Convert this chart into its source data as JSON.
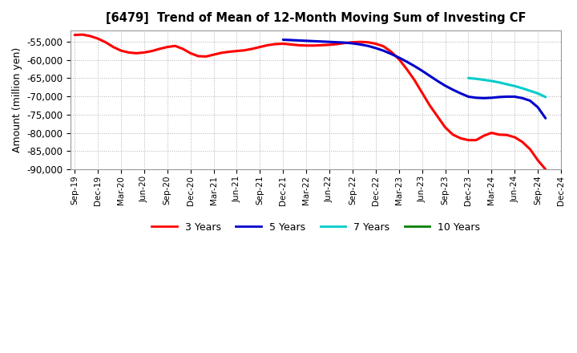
{
  "title": "[6479]  Trend of Mean of 12-Month Moving Sum of Investing CF",
  "ylabel": "Amount (million yen)",
  "ylim": [
    -90000,
    -52000
  ],
  "yticks": [
    -90000,
    -85000,
    -80000,
    -75000,
    -70000,
    -65000,
    -60000,
    -55000
  ],
  "background_color": "#ffffff",
  "grid_color": "#b0b0b0",
  "series": {
    "3yr": {
      "color": "#ff0000",
      "label": "3 Years",
      "x": [
        0,
        1,
        2,
        3,
        4,
        5,
        6,
        7,
        8,
        9,
        10,
        11,
        12,
        13,
        14,
        15,
        16,
        17,
        18,
        19,
        20,
        21,
        22,
        23,
        24,
        25,
        26,
        27,
        28,
        29,
        30,
        31,
        32,
        33,
        34,
        35,
        36,
        37,
        38,
        39,
        40,
        41,
        42,
        43,
        44,
        45,
        46,
        47,
        48,
        49,
        50,
        51,
        52,
        53,
        54,
        55,
        56,
        57,
        58,
        59,
        60,
        61
      ],
      "y": [
        -53200,
        -53100,
        -53500,
        -54200,
        -55200,
        -56500,
        -57500,
        -58000,
        -58200,
        -58000,
        -57600,
        -57000,
        -56500,
        -56200,
        -57000,
        -58200,
        -59000,
        -59100,
        -58600,
        -58100,
        -57800,
        -57600,
        -57400,
        -57000,
        -56500,
        -56000,
        -55700,
        -55600,
        -55800,
        -56000,
        -56100,
        -56100,
        -56000,
        -55900,
        -55700,
        -55400,
        -55200,
        -55100,
        -55200,
        -55600,
        -56300,
        -57800,
        -59800,
        -62500,
        -65500,
        -69000,
        -72500,
        -75500,
        -78500,
        -80500,
        -81500,
        -82000,
        -82000,
        -80800,
        -80000,
        -80500,
        -80600,
        -81200,
        -82500,
        -84500,
        -87500,
        -90000
      ]
    },
    "5yr": {
      "color": "#0000cc",
      "label": "5 Years",
      "x": [
        27,
        28,
        29,
        30,
        31,
        32,
        33,
        34,
        35,
        36,
        37,
        38,
        39,
        40,
        41,
        42,
        43,
        44,
        45,
        46,
        47,
        48,
        49,
        50,
        51,
        52,
        53,
        54,
        55,
        56,
        57,
        58,
        59,
        60,
        61
      ],
      "y": [
        -54500,
        -54600,
        -54700,
        -54800,
        -54900,
        -55000,
        -55100,
        -55200,
        -55300,
        -55500,
        -55800,
        -56200,
        -56800,
        -57500,
        -58400,
        -59400,
        -60500,
        -61700,
        -63000,
        -64400,
        -65800,
        -67100,
        -68200,
        -69200,
        -70100,
        -70400,
        -70500,
        -70400,
        -70200,
        -70100,
        -70100,
        -70500,
        -71200,
        -73000,
        -76000
      ]
    },
    "7yr": {
      "color": "#00cccc",
      "label": "7 Years",
      "x": [
        51,
        52,
        53,
        54,
        55,
        56,
        57,
        58,
        59,
        60,
        61
      ],
      "y": [
        -65000,
        -65200,
        -65500,
        -65800,
        -66200,
        -66700,
        -67200,
        -67800,
        -68500,
        -69200,
        -70200
      ]
    },
    "10yr": {
      "color": "#008000",
      "label": "10 Years",
      "x": [],
      "y": []
    }
  },
  "xtick_labels": [
    "Sep-19",
    "Dec-19",
    "Mar-20",
    "Jun-20",
    "Sep-20",
    "Dec-20",
    "Mar-21",
    "Jun-21",
    "Sep-21",
    "Dec-21",
    "Mar-22",
    "Jun-22",
    "Sep-22",
    "Dec-22",
    "Mar-23",
    "Jun-23",
    "Sep-23",
    "Dec-23",
    "Mar-24",
    "Jun-24",
    "Sep-24",
    "Dec-24"
  ],
  "xtick_positions": [
    0,
    3,
    6,
    9,
    12,
    15,
    18,
    21,
    24,
    27,
    30,
    33,
    36,
    39,
    42,
    45,
    48,
    51,
    54,
    57,
    60,
    63
  ]
}
